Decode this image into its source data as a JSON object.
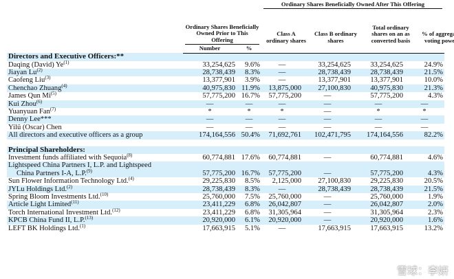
{
  "headers": {
    "prior": "Ordinary Shares Beneficially Owned Prior to This Offering",
    "after": "Ordinary Shares Beneficially Owned After This Offering",
    "class_a": "Class A ordinary shares",
    "class_b": "Class B ordinary shares",
    "total": "Total ordinary shares on an as converted basis",
    "voting": "% of aggregate voting power",
    "number": "Number",
    "percent": "%"
  },
  "sections": {
    "directors": "Directors and Executive Officers:**",
    "principal": "Principal Shareholders:"
  },
  "directors": [
    {
      "name": "Daqing (David) Ye",
      "note": "(1)",
      "number": "33,254,625",
      "pct": "9.6%",
      "class_a": "—",
      "class_b": "33,254,625",
      "total": "33,254,625",
      "voting": "24.9%"
    },
    {
      "name": "Jiayan Lu",
      "note": "(2)",
      "number": "28,738,439",
      "pct": "8.3%",
      "class_a": "—",
      "class_b": "28,738,439",
      "total": "28,738,439",
      "voting": "21.5%"
    },
    {
      "name": "Caofeng Liu",
      "note": "(3)",
      "number": "13,377,901",
      "pct": "3.9%",
      "class_a": "—",
      "class_b": "13,377,901",
      "total": "13,377,901",
      "voting": "10.0%"
    },
    {
      "name": "Chenchao Zhuang",
      "note": "(4)",
      "number": "40,975,830",
      "pct": "11.9%",
      "class_a": "13,875,000",
      "class_b": "27,100,830",
      "total": "40,975,830",
      "voting": "21.3%"
    },
    {
      "name": "James Qun Mi",
      "note": "(5)",
      "number": "57,775,200",
      "pct": "16.7%",
      "class_a": "57,775,200",
      "class_b": "—",
      "total": "57,775,200",
      "voting": "4.3%"
    },
    {
      "name": "Kui Zhou",
      "note": "(6)",
      "number": "—",
      "pct": "—",
      "class_a": "—",
      "class_b": "—",
      "total": "—",
      "voting": "—"
    },
    {
      "name": "Yuanyuan Fan",
      "note": "(7)",
      "number": "*",
      "pct": "*",
      "class_a": "*",
      "class_b": "—",
      "total": "*",
      "voting": "*"
    },
    {
      "name": "Denny Lee***",
      "note": "",
      "number": "—",
      "pct": "—",
      "class_a": "—",
      "class_b": "—",
      "total": "—",
      "voting": "—"
    },
    {
      "name": "Yilü (Oscar) Chen",
      "note": "",
      "number": "—",
      "pct": "—",
      "class_a": "—",
      "class_b": "—",
      "total": "—",
      "voting": "—"
    }
  ],
  "directors_total": {
    "name": "All directors and executive officers as a group",
    "number": "174,164,556",
    "pct": "50.4%",
    "class_a": "71,692,761",
    "class_b": "102,471,795",
    "total": "174,164,556",
    "voting": "82.2%"
  },
  "principal": [
    {
      "name": "Investment funds affiliated with Sequoia",
      "note": "(8)",
      "number": "60,774,881",
      "pct": "17.6%",
      "class_a": "60,774,881",
      "class_b": "—",
      "total": "60,774,881",
      "voting": "4.6%"
    },
    {
      "name": "Lightspeed China Partners I, L.P. and Lightspeed",
      "name2": "China Partners I-A, L.P.",
      "note": "(9)",
      "number": "57,775,200",
      "pct": "16.7%",
      "class_a": "57,775,200",
      "class_b": "—",
      "total": "57,775,200",
      "voting": "4.3%"
    },
    {
      "name": "Sun Flower Information Technology Ltd.",
      "note": "(4)",
      "number": "29,225,830",
      "pct": "8.5%",
      "class_a": "2,125,000",
      "class_b": "27,100,830",
      "total": "29,225,830",
      "voting": "20.5%"
    },
    {
      "name": "JYLu Holdings Ltd.",
      "note": "(2)",
      "number": "28,738,439",
      "pct": "8.3%",
      "class_a": "—",
      "class_b": "28,738,439",
      "total": "28,738,439",
      "voting": "21.5%"
    },
    {
      "name": "Spring Bloom Investments Ltd.",
      "note": "(10)",
      "number": "25,760,000",
      "pct": "7.5%",
      "class_a": "25,760,000",
      "class_b": "—",
      "total": "25,760,000",
      "voting": "1.9%"
    },
    {
      "name": "Article Light Limited",
      "note": "(11)",
      "number": "23,411,229",
      "pct": "6.8%",
      "class_a": "26,042,807",
      "class_b": "—",
      "total": "26,042,807",
      "voting": "2.0%"
    },
    {
      "name": "Torch International Investment Ltd.",
      "note": "(12)",
      "number": "23,411,229",
      "pct": "6.8%",
      "class_a": "31,305,964",
      "class_b": "—",
      "total": "31,305,964",
      "voting": "2.3%"
    },
    {
      "name": "KPCB China Fund II, L.P.",
      "note": "(13)",
      "number": "20,920,000",
      "pct": "6.1%",
      "class_a": "20,920,000",
      "class_b": "—",
      "total": "20,920,000",
      "voting": "1.6%"
    },
    {
      "name": "LEFT BK Holdings Ltd.",
      "note": "(1)",
      "number": "17,663,915",
      "pct": "5.1%",
      "class_a": "—",
      "class_b": "17,663,915",
      "total": "17,663,915",
      "voting": "13.2%"
    }
  ],
  "watermark": "雪球：李妍"
}
